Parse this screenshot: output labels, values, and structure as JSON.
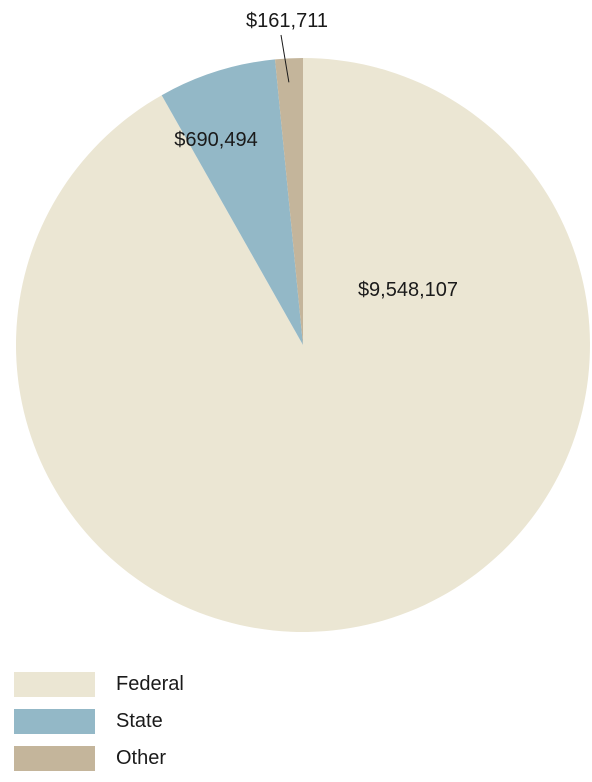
{
  "chart_data": {
    "type": "pie",
    "title": "",
    "categories": [
      "Federal",
      "State",
      "Other"
    ],
    "values": [
      9548107,
      690494,
      161711
    ],
    "value_labels": [
      "$9,548,107",
      "$690,494",
      "$161,711"
    ],
    "colors": [
      "#ebe6d3",
      "#93b8c7",
      "#c4b59b"
    ],
    "start_angle": "12 o'clock",
    "direction": "clockwise",
    "legend_position": "bottom-left"
  },
  "legend": {
    "items": [
      {
        "label": "Federal",
        "color": "#ebe6d3"
      },
      {
        "label": "State",
        "color": "#93b8c7"
      },
      {
        "label": "Other",
        "color": "#c4b59b"
      }
    ]
  }
}
